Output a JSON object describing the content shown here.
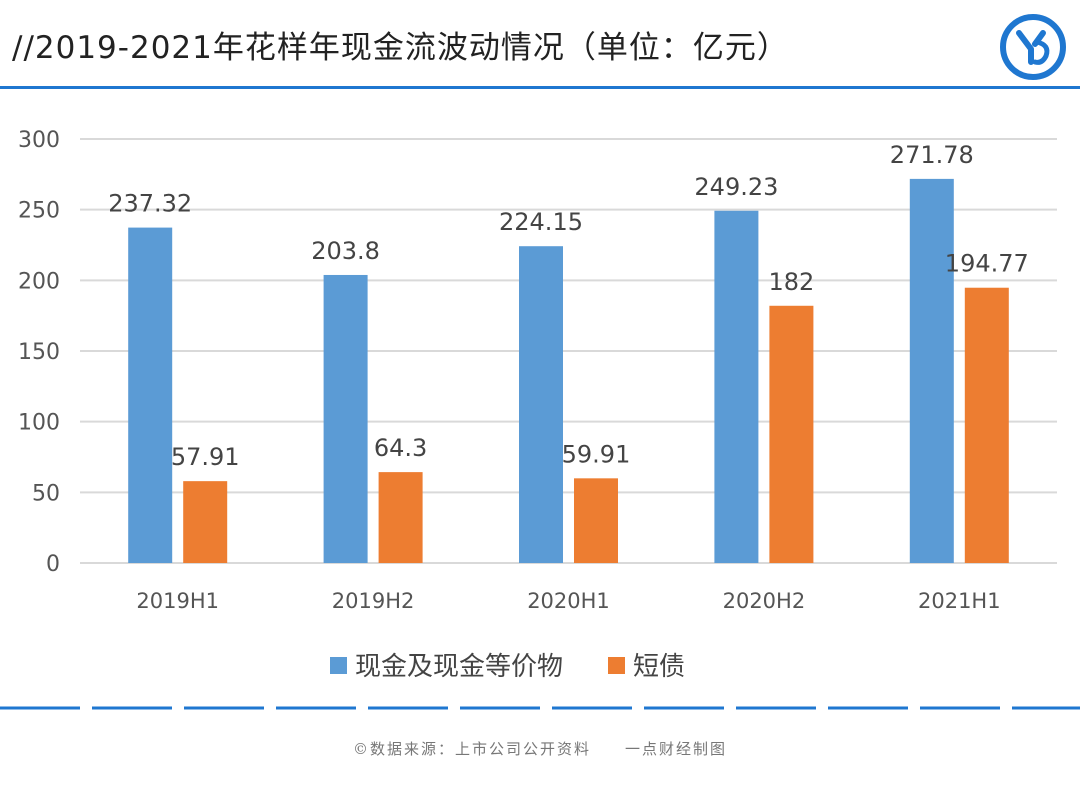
{
  "header": {
    "title": "//2019-2021年花样年现金流波动情况（单位：亿元）",
    "logo_icon": "yd-logo-icon"
  },
  "colors": {
    "series1": "#5b9bd5",
    "series2": "#ed7d31",
    "grid": "#d9d9d9",
    "accent": "#1f77d0"
  },
  "chart_data": {
    "type": "bar",
    "categories": [
      "2019H1",
      "2019H2",
      "2020H1",
      "2020H2",
      "2021H1"
    ],
    "series": [
      {
        "name": "现金及现金等价物",
        "values": [
          237.32,
          203.8,
          224.15,
          249.23,
          271.78
        ],
        "labels": [
          "237.32",
          "203.8",
          "224.15",
          "249.23",
          "271.78"
        ]
      },
      {
        "name": "短债",
        "values": [
          57.91,
          64.3,
          59.91,
          182,
          194.77
        ],
        "labels": [
          "57.91",
          "64.3",
          "59.91",
          "182",
          "194.77"
        ]
      }
    ],
    "yticks": [
      "0",
      "50",
      "100",
      "150",
      "200",
      "250",
      "300"
    ],
    "ylim": [
      0,
      300
    ],
    "grid": true,
    "legend_position": "bottom"
  },
  "footer": {
    "source": "©数据来源：上市公司公开资料　　一点财经制图"
  }
}
